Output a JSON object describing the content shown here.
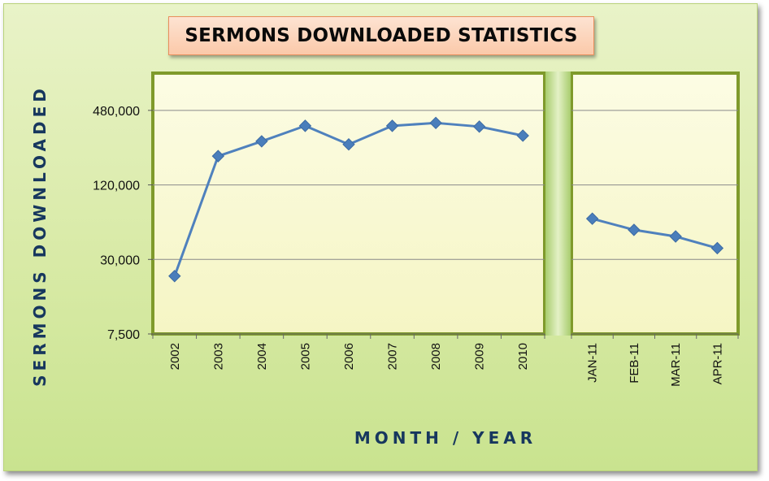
{
  "chart_data": {
    "type": "line",
    "title": "SERMONS DOWNLOADED STATISTICS",
    "xlabel": "MONTH / YEAR",
    "ylabel": "SERMONS DOWNLOADED",
    "y_scale": "log",
    "ylim": [
      7500,
      960000
    ],
    "yticks": [
      7500,
      30000,
      120000,
      480000
    ],
    "ytick_labels": [
      "7,500",
      "30,000",
      "120,000",
      "480,000"
    ],
    "grid": true,
    "legend": "none",
    "panels": [
      {
        "categories": [
          "2002",
          "2003",
          "2004",
          "2005",
          "2006",
          "2007",
          "2008",
          "2009",
          "2010"
        ],
        "values": [
          22000,
          205000,
          270000,
          360000,
          255000,
          360000,
          380000,
          355000,
          300000
        ]
      },
      {
        "categories": [
          "JAN-11",
          "FEB-11",
          "MAR-11",
          "APR-11"
        ],
        "values": [
          64000,
          52000,
          46000,
          37000
        ]
      }
    ],
    "colors": {
      "line": "#4f81bd",
      "marker": "#4a7ebb",
      "plot_bg": "#fbfbd6",
      "plot_border": "#7f9a2b",
      "axis_title": "#17375e"
    }
  }
}
